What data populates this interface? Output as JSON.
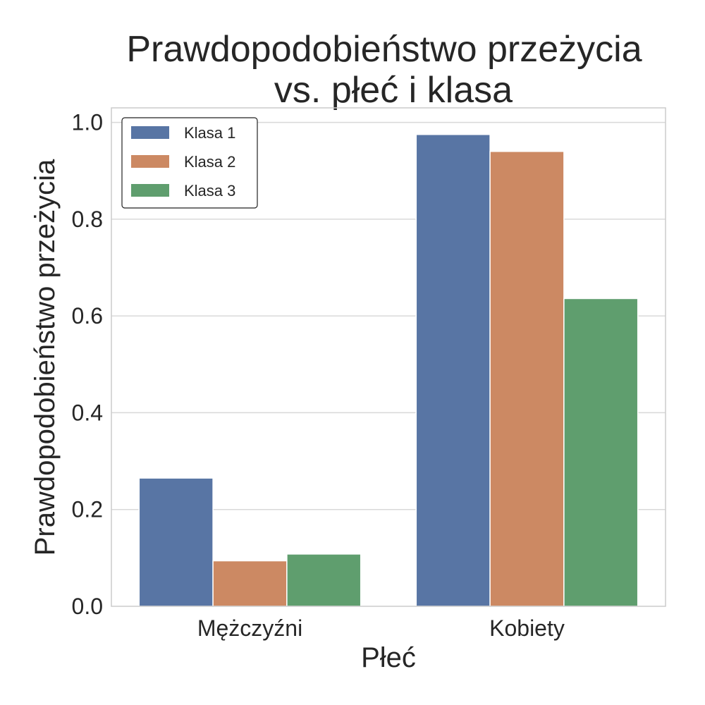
{
  "chart_data": {
    "type": "bar",
    "title": [
      "Prawdopodobieństwo przeżycia",
      "vs. płeć i klasa"
    ],
    "xlabel": "Płeć",
    "ylabel": "Prawdopodobieństwo przeżycia",
    "categories": [
      "Mężczyźni",
      "Kobiety"
    ],
    "series": [
      {
        "name": "Klasa 1",
        "values": [
          0.265,
          0.975
        ],
        "color": "#5875a4"
      },
      {
        "name": "Klasa 2",
        "values": [
          0.094,
          0.94
        ],
        "color": "#cc8963"
      },
      {
        "name": "Klasa 3",
        "values": [
          0.108,
          0.636
        ],
        "color": "#5f9e6e"
      }
    ],
    "ylim": [
      0,
      1.03
    ],
    "yticks": [
      "0.0",
      "0.2",
      "0.4",
      "0.6",
      "0.8",
      "1.0"
    ],
    "grid": "horizontal",
    "legend_position": "top-left"
  }
}
